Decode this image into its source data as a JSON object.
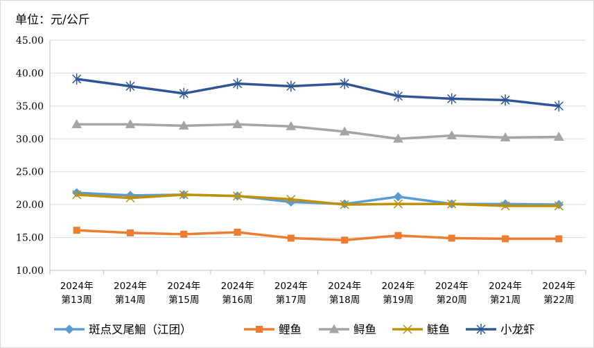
{
  "chart_data": {
    "type": "line",
    "unit_label": "单位：元/公斤",
    "categories": [
      [
        "2024年",
        "第13周"
      ],
      [
        "2024年",
        "第14周"
      ],
      [
        "2024年",
        "第15周"
      ],
      [
        "2024年",
        "第16周"
      ],
      [
        "2024年",
        "第17周"
      ],
      [
        "2024年",
        "第18周"
      ],
      [
        "2024年",
        "第19周"
      ],
      [
        "2024年",
        "第20周"
      ],
      [
        "2024年",
        "第21周"
      ],
      [
        "2024年",
        "第22周"
      ]
    ],
    "ylim": [
      10,
      45
    ],
    "yticks": [
      "10.00",
      "15.00",
      "20.00",
      "25.00",
      "30.00",
      "35.00",
      "40.00",
      "45.00"
    ],
    "grid": "horizontal",
    "legend_position": "bottom",
    "series": [
      {
        "name": "斑点叉尾鮰（江团）",
        "color": "#5b9bd5",
        "marker": "diamond",
        "values": [
          21.8,
          21.4,
          21.5,
          21.3,
          20.4,
          20.1,
          21.2,
          20.1,
          20.1,
          20.0
        ]
      },
      {
        "name": "鲤鱼",
        "color": "#ed7d31",
        "marker": "square",
        "values": [
          16.1,
          15.7,
          15.5,
          15.8,
          14.9,
          14.6,
          15.3,
          14.9,
          14.8,
          14.8
        ]
      },
      {
        "name": "鲟鱼",
        "color": "#a5a5a5",
        "marker": "triangle",
        "values": [
          32.2,
          32.2,
          32.0,
          32.2,
          31.9,
          31.1,
          30.0,
          30.5,
          30.2,
          30.3
        ]
      },
      {
        "name": "鲢鱼",
        "color": "#bf9000",
        "marker": "x",
        "values": [
          21.5,
          21.0,
          21.5,
          21.3,
          20.8,
          20.0,
          20.1,
          20.1,
          19.8,
          19.8
        ]
      },
      {
        "name": "小龙虾",
        "color": "#2f5597",
        "marker": "star",
        "values": [
          39.1,
          38.0,
          36.9,
          38.4,
          38.0,
          38.4,
          36.5,
          36.1,
          35.9,
          35.0
        ]
      }
    ]
  }
}
